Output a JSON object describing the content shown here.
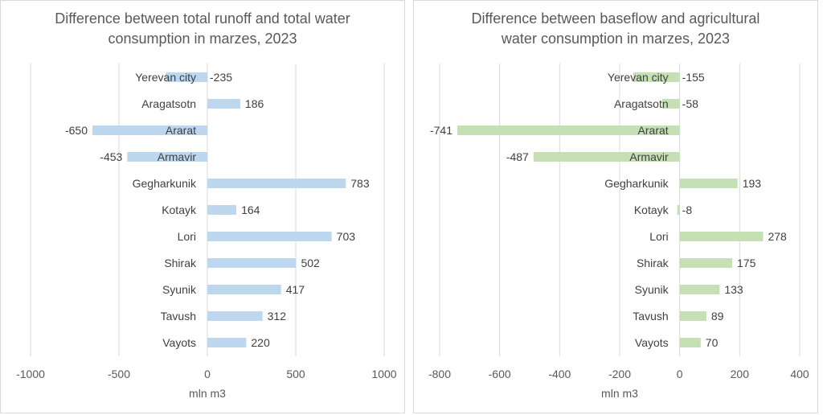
{
  "chart_data": [
    {
      "type": "bar",
      "orientation": "horizontal",
      "title_lines": [
        "Difference between total runoff and total water",
        "consumption in marzes,  2023"
      ],
      "xlabel": "mln m3",
      "ylabel": "",
      "xlim": [
        -1000,
        1000
      ],
      "x_ticks": [
        "-1000",
        "-500",
        "0",
        "500",
        "1000"
      ],
      "grid": true,
      "color": "#bdd7ee",
      "categories": [
        "Yerevan city",
        "Aragatsotn",
        "Ararat",
        "Armavir",
        "Gegharkunik",
        "Kotayk",
        "Lori",
        "Shirak",
        "Syunik",
        "Tavush",
        "Vayots"
      ],
      "values": [
        -235,
        186,
        -650,
        -453,
        783,
        164,
        703,
        502,
        417,
        312,
        220
      ]
    },
    {
      "type": "bar",
      "orientation": "horizontal",
      "title_lines": [
        "Difference between baseflow and agricultural",
        "water consumption in marzes,  2023"
      ],
      "xlabel": "mln m3",
      "ylabel": "",
      "xlim": [
        -800,
        400
      ],
      "x_ticks": [
        "-800",
        "-600",
        "-400",
        "-200",
        "0",
        "200",
        "400"
      ],
      "grid": true,
      "color": "#c5e0b4",
      "categories": [
        "Yerevan city",
        "Aragatsotn",
        "Ararat",
        "Armavir",
        "Gegharkunik",
        "Kotayk",
        "Lori",
        "Shirak",
        "Syunik",
        "Tavush",
        "Vayots"
      ],
      "values": [
        -155,
        -58,
        -741,
        -487,
        193,
        -8,
        278,
        175,
        133,
        89,
        70
      ]
    }
  ]
}
